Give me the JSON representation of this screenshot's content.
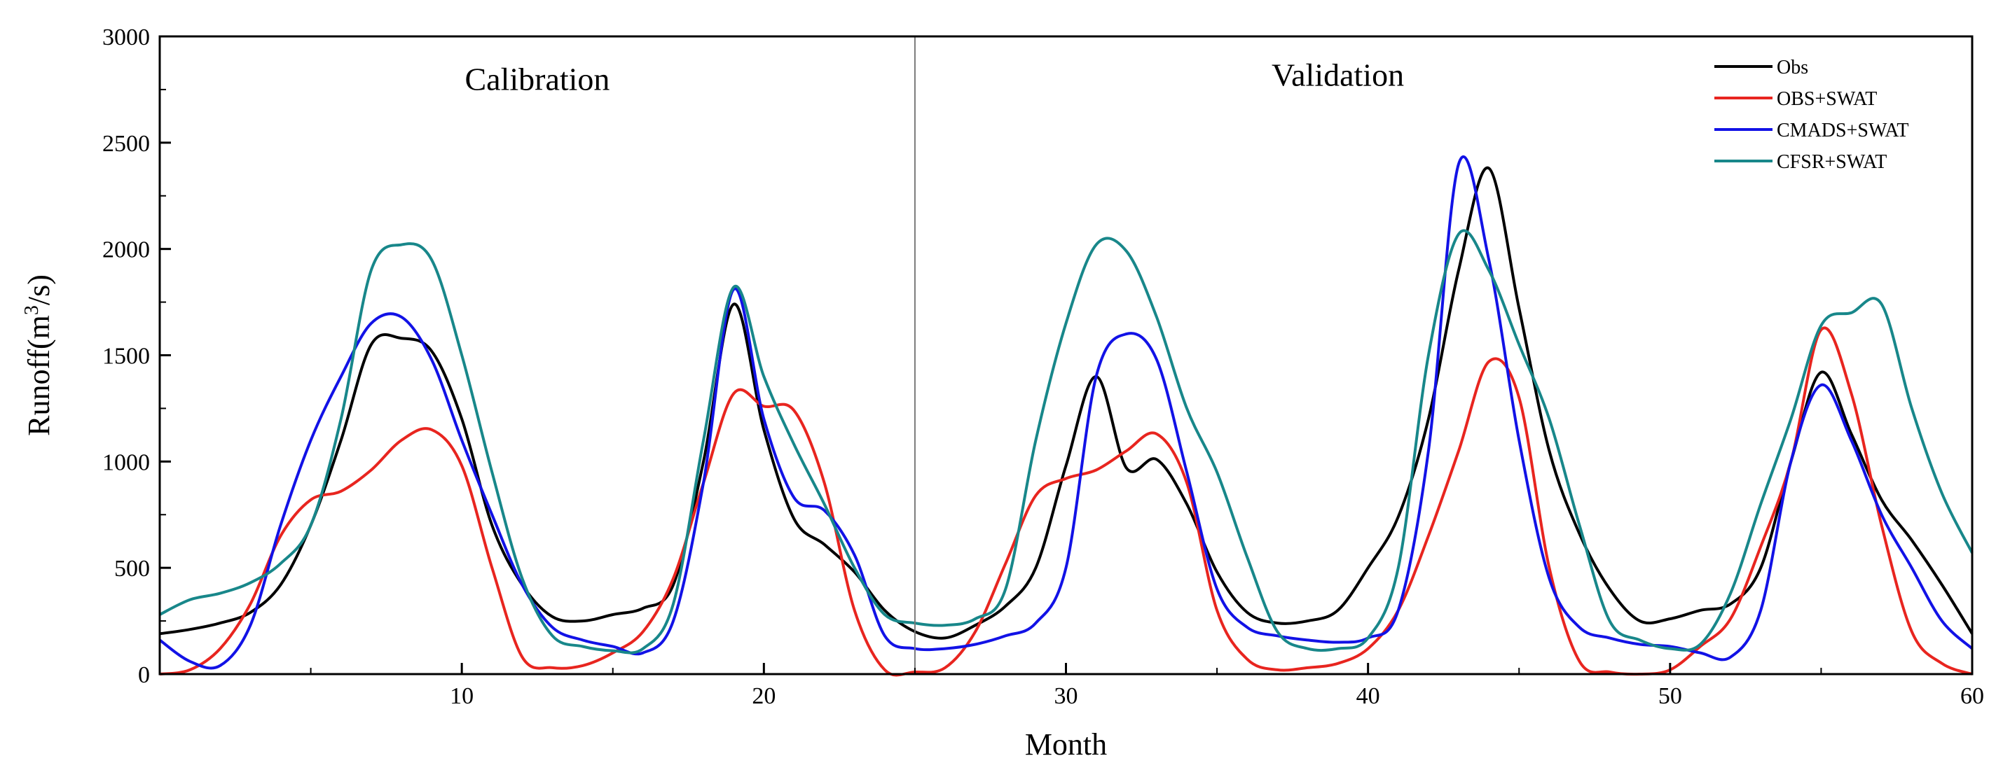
{
  "chart_data": {
    "type": "line",
    "title": "",
    "xlabel": "Month",
    "ylabel": "Runoff(m3/s)",
    "ylabel_parts": {
      "before": "Runoff(m",
      "sup": "3",
      "after": "/s)"
    },
    "xlim": [
      0,
      60
    ],
    "ylim": [
      0,
      3000
    ],
    "x_ticks": [
      10,
      20,
      30,
      40,
      50,
      60
    ],
    "x_tick_labels": [
      "10",
      "20",
      "30",
      "40",
      "50",
      "60"
    ],
    "y_ticks": [
      0,
      500,
      1000,
      1500,
      2000,
      2500,
      3000
    ],
    "y_tick_labels": [
      "0",
      "500",
      "1000",
      "1500",
      "2000",
      "2500",
      "3000"
    ],
    "grid": false,
    "legend": "top-right",
    "divider_x": 25,
    "annotations": [
      {
        "text": "Calibration",
        "x": 12.5,
        "y": 2800
      },
      {
        "text": "Validation",
        "x": 39,
        "y": 2820
      }
    ],
    "x": [
      0,
      1,
      2,
      3,
      4,
      5,
      6,
      7,
      8,
      9,
      10,
      11,
      12,
      13,
      14,
      15,
      16,
      17,
      18,
      19,
      20,
      21,
      22,
      23,
      24,
      25,
      26,
      27,
      28,
      29,
      30,
      31,
      32,
      33,
      34,
      35,
      36,
      37,
      38,
      39,
      40,
      41,
      42,
      43,
      44,
      45,
      46,
      47,
      48,
      49,
      50,
      51,
      52,
      53,
      54,
      55,
      56,
      57,
      58,
      59,
      60
    ],
    "series": [
      {
        "name": "Obs",
        "color": "#000000",
        "values": [
          190,
          210,
          240,
          290,
          420,
          700,
          1100,
          1550,
          1580,
          1520,
          1200,
          700,
          420,
          270,
          250,
          280,
          310,
          420,
          1000,
          1740,
          1150,
          730,
          610,
          480,
          300,
          200,
          170,
          230,
          320,
          500,
          980,
          1400,
          970,
          1010,
          800,
          480,
          290,
          240,
          250,
          300,
          500,
          740,
          1200,
          1900,
          2380,
          1720,
          1050,
          660,
          400,
          250,
          260,
          300,
          330,
          500,
          1000,
          1420,
          1130,
          820,
          630,
          420,
          190
        ]
      },
      {
        "name": "OBS+SWAT",
        "color": "#e8251f",
        "values": [
          0,
          20,
          120,
          330,
          650,
          820,
          860,
          960,
          1100,
          1150,
          980,
          500,
          80,
          30,
          40,
          100,
          200,
          450,
          900,
          1320,
          1260,
          1240,
          900,
          300,
          20,
          10,
          30,
          200,
          520,
          840,
          920,
          960,
          1050,
          1130,
          900,
          300,
          70,
          20,
          30,
          50,
          120,
          300,
          650,
          1050,
          1470,
          1300,
          500,
          60,
          10,
          0,
          20,
          130,
          260,
          600,
          1000,
          1620,
          1320,
          700,
          200,
          50,
          0
        ]
      },
      {
        "name": "CMADS+SWAT",
        "color": "#1212e6",
        "values": [
          160,
          60,
          40,
          230,
          700,
          1100,
          1400,
          1650,
          1680,
          1480,
          1100,
          750,
          420,
          220,
          160,
          130,
          100,
          250,
          900,
          1810,
          1200,
          830,
          770,
          560,
          180,
          120,
          120,
          140,
          180,
          240,
          500,
          1400,
          1600,
          1480,
          950,
          400,
          220,
          180,
          160,
          150,
          170,
          300,
          1050,
          2400,
          1950,
          1100,
          450,
          220,
          170,
          140,
          130,
          100,
          80,
          300,
          1000,
          1360,
          1100,
          750,
          500,
          250,
          120
        ]
      },
      {
        "name": "CFSR+SWAT",
        "color": "#18878a",
        "values": [
          280,
          350,
          380,
          430,
          520,
          700,
          1200,
          1900,
          2020,
          1950,
          1500,
          950,
          450,
          180,
          130,
          110,
          120,
          330,
          1100,
          1820,
          1400,
          1080,
          800,
          500,
          280,
          240,
          230,
          260,
          400,
          1100,
          1650,
          2020,
          1990,
          1680,
          1250,
          950,
          550,
          200,
          120,
          120,
          170,
          500,
          1500,
          2070,
          1900,
          1550,
          1200,
          700,
          250,
          160,
          120,
          140,
          380,
          800,
          1200,
          1640,
          1700,
          1740,
          1250,
          850,
          570
        ]
      }
    ]
  }
}
